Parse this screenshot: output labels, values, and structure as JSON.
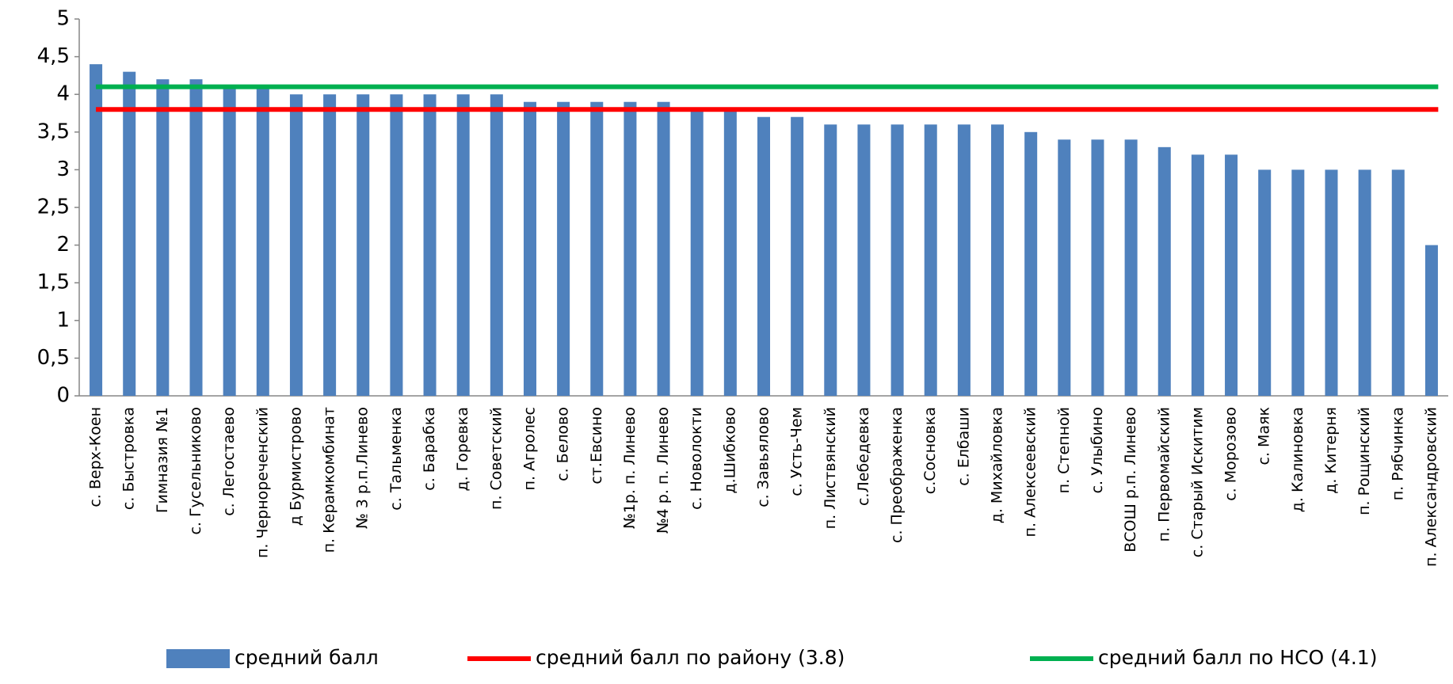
{
  "chart_data": {
    "type": "bar",
    "categories": [
      "с. Верх-Коен",
      "с. Быстровка",
      "Гимназия №1",
      "с. Гусельниково",
      "с. Легостаево",
      "п. Чернореченский",
      "д Бурмистрово",
      "п. Керамкомбинат",
      "№ 3 р.п.Линево",
      "с. Тальменка",
      "с. Барабка",
      "д. Горевка",
      "п. Советский",
      "п. Агролес",
      "с. Белово",
      "ст.Евсино",
      "№1р. п. Линево",
      "№4 р. п. Линево",
      "с. Новолокти",
      "д.Шибково",
      "с. Завьялово",
      "с. Усть-Чем",
      "п. Листвянский",
      "с.Лебедевка",
      "с. Преображенка",
      "с.Сосновка",
      "с. Елбаши",
      "д. Михайловка",
      "п. Алексеевский",
      "п. Степной",
      "с. Улыбино",
      "ВСОШ р.п. Линево",
      "п. Первомайский",
      "с. Старый Искитим",
      "с. Морозово",
      "с. Маяк",
      "д. Калиновка",
      "д. Китерня",
      "п. Рощинский",
      "п. Рябчинка",
      "п. Александровский"
    ],
    "series": [
      {
        "name": "средний балл",
        "color": "#4f81bd",
        "values": [
          4.4,
          4.3,
          4.2,
          4.2,
          4.1,
          4.1,
          4.0,
          4.0,
          4.0,
          4.0,
          4.0,
          4.0,
          4.0,
          3.9,
          3.9,
          3.9,
          3.9,
          3.9,
          3.8,
          3.8,
          3.7,
          3.7,
          3.6,
          3.6,
          3.6,
          3.6,
          3.6,
          3.6,
          3.5,
          3.4,
          3.4,
          3.4,
          3.3,
          3.2,
          3.2,
          3.0,
          3.0,
          3.0,
          3.0,
          3.0,
          2.0
        ]
      },
      {
        "name": "средний балл по району (3.8)",
        "color": "#ff0000",
        "type": "line",
        "value": 3.8
      },
      {
        "name": "средний балл по НСО (4.1)",
        "color": "#00b050",
        "type": "line",
        "value": 4.1
      }
    ],
    "ylim": [
      0,
      5
    ],
    "yticks": [
      0,
      {
        "value": 0.5,
        "label": "0,5"
      },
      1,
      {
        "value": 1.5,
        "label": "1,5"
      },
      2,
      {
        "value": 2.5,
        "label": "2,5"
      },
      3,
      {
        "value": 3.5,
        "label": "3,5"
      },
      4,
      {
        "value": 4.5,
        "label": "4,5"
      },
      5
    ],
    "legend": "bottom"
  }
}
